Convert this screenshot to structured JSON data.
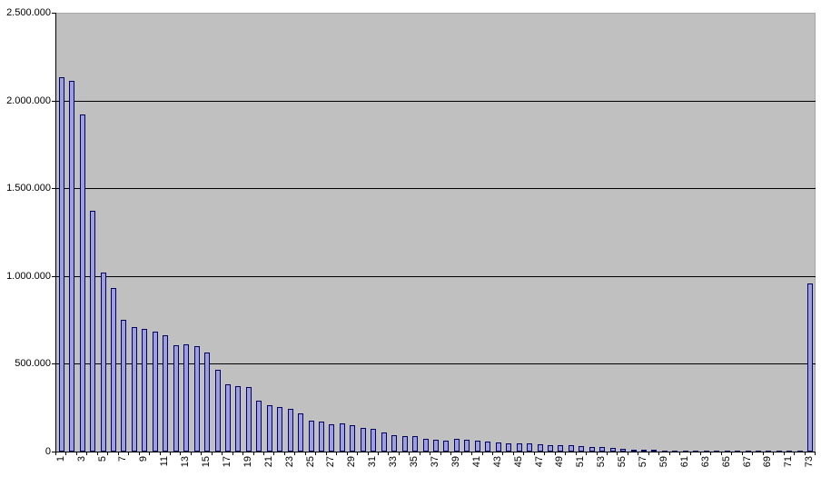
{
  "chart_data": {
    "type": "bar",
    "title": "",
    "xlabel": "",
    "ylabel": "",
    "legend": false,
    "grid": true,
    "ylim": [
      0,
      2500000
    ],
    "y_tick_values": [
      0,
      500000,
      1000000,
      1500000,
      2000000,
      2500000
    ],
    "y_tick_labels": [
      "0",
      "500.000",
      "1.000.000",
      "1.500.000",
      "2.000.000",
      "2.500.000"
    ],
    "x_tick_labels": [
      "1",
      "3",
      "5",
      "7",
      "9",
      "11",
      "13",
      "15",
      "17",
      "19",
      "21",
      "23",
      "25",
      "27",
      "29",
      "31",
      "33",
      "35",
      "37",
      "39",
      "41",
      "43",
      "45",
      "47",
      "49",
      "51",
      "53",
      "55",
      "57",
      "59",
      "61",
      "63",
      "65",
      "67",
      "69",
      "71",
      "73"
    ],
    "x_label_interval": 2,
    "categories": [
      1,
      2,
      3,
      4,
      5,
      6,
      7,
      8,
      9,
      10,
      11,
      12,
      13,
      14,
      15,
      16,
      17,
      18,
      19,
      20,
      21,
      22,
      23,
      24,
      25,
      26,
      27,
      28,
      29,
      30,
      31,
      32,
      33,
      34,
      35,
      36,
      37,
      38,
      39,
      40,
      41,
      42,
      43,
      44,
      45,
      46,
      47,
      48,
      49,
      50,
      51,
      52,
      53,
      54,
      55,
      56,
      57,
      58,
      59,
      60,
      61,
      62,
      63,
      64,
      65,
      66,
      67,
      68,
      69,
      70,
      71,
      72,
      73
    ],
    "values": [
      2130000,
      2110000,
      1920000,
      1370000,
      1020000,
      930000,
      748000,
      710000,
      698000,
      685000,
      660000,
      605000,
      610000,
      600000,
      565000,
      468000,
      385000,
      373000,
      368000,
      290000,
      263000,
      255000,
      243000,
      216000,
      177000,
      172000,
      157000,
      161000,
      149000,
      134000,
      128000,
      107000,
      94000,
      89000,
      86000,
      70000,
      68000,
      64000,
      71000,
      66000,
      62000,
      57000,
      52000,
      45000,
      44000,
      46000,
      42000,
      36000,
      35000,
      34000,
      31000,
      27000,
      26000,
      21000,
      16000,
      11000,
      9000,
      8000,
      7000,
      6000,
      6000,
      5000,
      5000,
      5000,
      4000,
      4000,
      4000,
      3000,
      3000,
      3000,
      3000,
      3000,
      960000
    ],
    "colors": {
      "page_bg": "#FFFFFF",
      "plot_bg": "#C0C0C0",
      "plot_border": "#A6A6A6",
      "bar_fill": "#9C9FDB",
      "bar_border": "#000066",
      "gridline": "#000000",
      "axis": "#000000",
      "text": "#000000"
    }
  }
}
